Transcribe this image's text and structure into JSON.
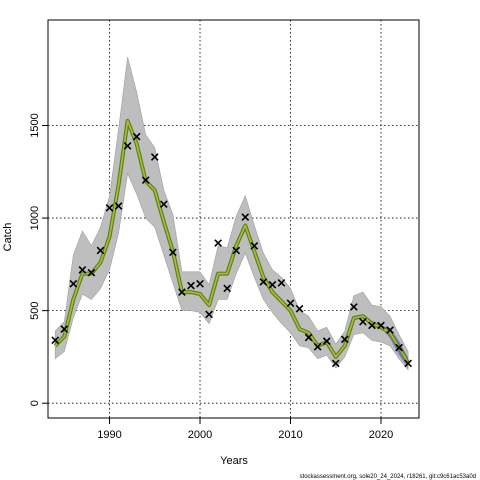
{
  "chart_data": {
    "type": "line",
    "title": "",
    "xlabel": "Years",
    "ylabel": "Catch",
    "xlim": [
      1983.2,
      2024.2
    ],
    "ylim": [
      -80,
      2070
    ],
    "x_ticks": [
      1990,
      2000,
      2010,
      2020
    ],
    "y_ticks": [
      0,
      500,
      1000,
      1500
    ],
    "grid": true,
    "legend": "none",
    "colors": {
      "band": "#bebebe",
      "band_edge": "#9e9e9e",
      "fit_outer": "#5f7f1f",
      "fit_inner": "#a8c038",
      "forecast_band": "#6f6fd8",
      "observed": "#000000"
    },
    "series": [
      {
        "kind": "fitted",
        "x": [
          1984,
          1985,
          1986,
          1987,
          1988,
          1989,
          1990,
          1991,
          1992,
          1993,
          1994,
          1995,
          1996,
          1997,
          1998,
          1999,
          2000,
          2001,
          2002,
          2003,
          2004,
          2005,
          2006,
          2007,
          2008,
          2009,
          2010,
          2011,
          2012,
          2013,
          2014,
          2015,
          2016,
          2017,
          2018,
          2019,
          2020,
          2021,
          2022,
          2023
        ],
        "y": [
          310,
          360,
          560,
          700,
          700,
          760,
          900,
          1180,
          1525,
          1400,
          1200,
          1150,
          980,
          820,
          600,
          600,
          590,
          530,
          700,
          700,
          850,
          960,
          820,
          680,
          600,
          550,
          500,
          400,
          380,
          310,
          330,
          250,
          310,
          460,
          470,
          430,
          410,
          380,
          300,
          220
        ],
        "lower": [
          240,
          280,
          460,
          590,
          560,
          620,
          720,
          920,
          1240,
          1130,
          1000,
          950,
          800,
          650,
          500,
          500,
          490,
          430,
          560,
          560,
          700,
          810,
          680,
          560,
          490,
          430,
          380,
          310,
          300,
          240,
          260,
          190,
          250,
          370,
          380,
          340,
          330,
          310,
          240,
          180
        ],
        "upper": [
          390,
          440,
          800,
          930,
          850,
          950,
          1120,
          1480,
          1870,
          1680,
          1450,
          1380,
          1150,
          1020,
          710,
          710,
          710,
          640,
          850,
          840,
          1010,
          1120,
          960,
          810,
          720,
          680,
          620,
          500,
          470,
          390,
          410,
          320,
          390,
          580,
          600,
          530,
          520,
          470,
          370,
          280
        ]
      },
      {
        "kind": "forecast",
        "x": [
          2018,
          2019,
          2020,
          2021,
          2022,
          2023
        ],
        "lower": [
          460,
          420,
          410,
          350,
          260,
          190
        ],
        "upper": [
          480,
          445,
          420,
          405,
          335,
          245
        ]
      },
      {
        "kind": "observed",
        "x": [
          1984,
          1985,
          1986,
          1987,
          1988,
          1989,
          1990,
          1991,
          1992,
          1993,
          1994,
          1995,
          1996,
          1997,
          1998,
          1999,
          2000,
          2001,
          2002,
          2003,
          2004,
          2005,
          2006,
          2007,
          2008,
          2009,
          2010,
          2011,
          2012,
          2013,
          2014,
          2015,
          2016,
          2017,
          2018,
          2019,
          2020,
          2021,
          2022,
          2023
        ],
        "y": [
          340,
          400,
          645,
          720,
          705,
          825,
          1055,
          1065,
          1390,
          1440,
          1205,
          1330,
          1075,
          815,
          600,
          635,
          645,
          480,
          865,
          620,
          825,
          1005,
          850,
          655,
          640,
          650,
          540,
          510,
          355,
          305,
          335,
          215,
          345,
          520,
          440,
          420,
          420,
          395,
          300,
          215
        ]
      }
    ]
  },
  "footer": "stockassessment.org, sole20_24_2024, r18261, git:c9c61ac53a0d"
}
